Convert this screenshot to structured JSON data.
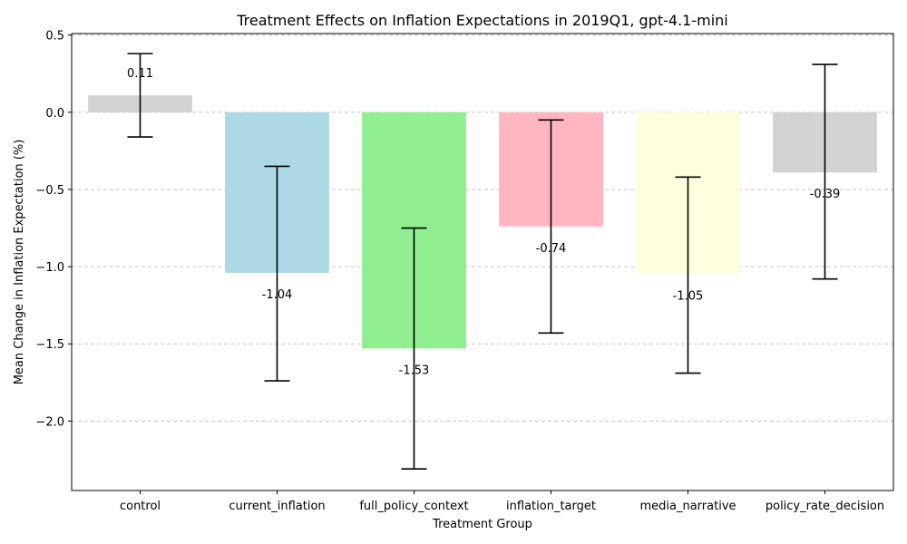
{
  "chart_data": {
    "type": "bar",
    "title": "Treatment Effects on Inflation Expectations in 2019Q1, gpt-4.1-mini",
    "xlabel": "Treatment Group",
    "ylabel": "Mean Change in Inflation Expectation (%)",
    "categories": [
      "control",
      "current_inflation",
      "full_policy_context",
      "inflation_target",
      "media_narrative",
      "policy_rate_decision"
    ],
    "values": [
      0.11,
      -1.04,
      -1.53,
      -0.74,
      -1.05,
      -0.39
    ],
    "value_labels": [
      "0.11",
      "-1.04",
      "-1.53",
      "-0.74",
      "-1.05",
      "-0.39"
    ],
    "error_low": [
      -0.16,
      -1.74,
      -2.31,
      -1.43,
      -1.69,
      -1.08
    ],
    "error_high": [
      0.38,
      -0.35,
      -0.75,
      -0.05,
      -0.42,
      0.31
    ],
    "colors": [
      "#d3d3d3",
      "#add8e6",
      "#90ee90",
      "#ffb6c1",
      "#ffffe0",
      "#d3d3d3"
    ],
    "ylim": [
      -2.45,
      0.51
    ],
    "yticks": [
      0.5,
      0.0,
      -0.5,
      -1.0,
      -1.5,
      -2.0
    ],
    "ytick_labels": [
      "0.5",
      "0.0",
      "−0.5",
      "−1.0",
      "−1.5",
      "−2.0"
    ],
    "grid": "y-dashed",
    "legend": "none"
  }
}
